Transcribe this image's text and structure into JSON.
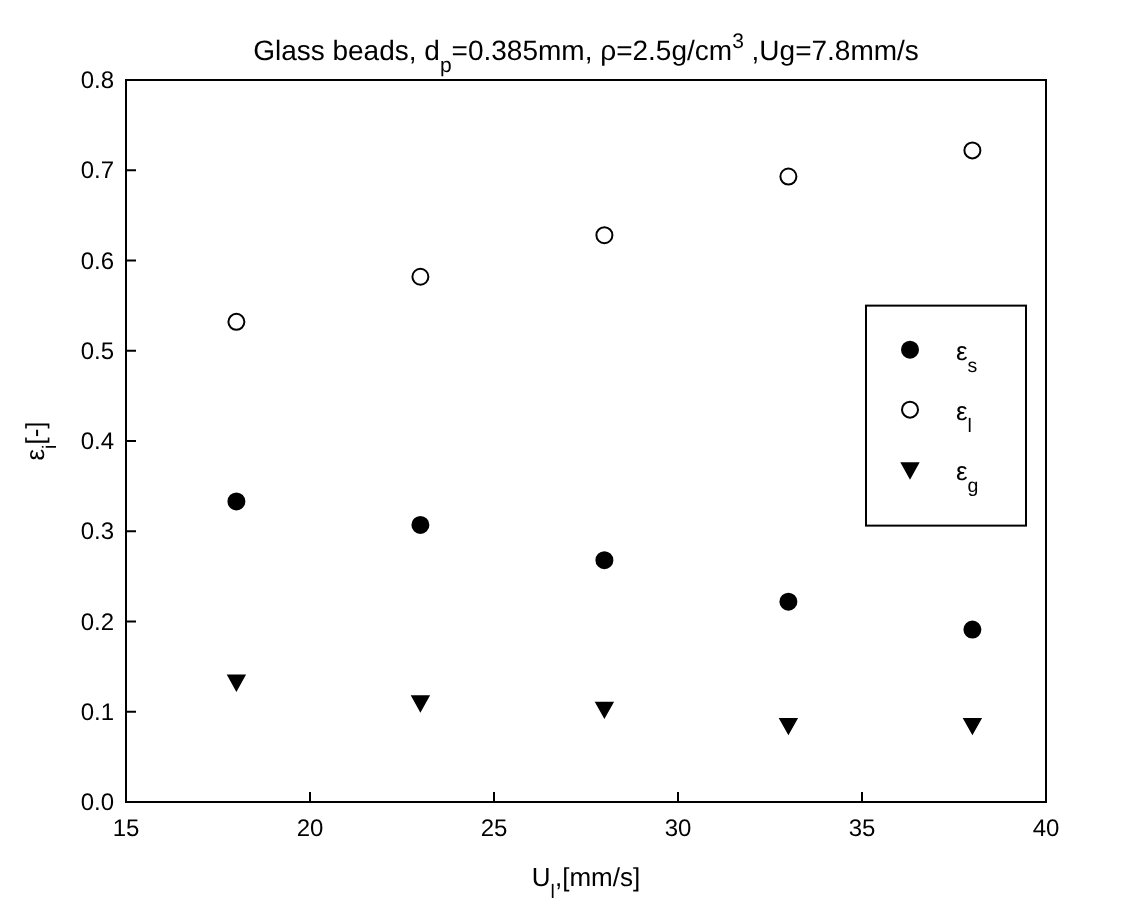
{
  "chart_data": {
    "type": "scatter",
    "title": "Glass beads, d$_{p}$=0.385mm, ρ=2.5g/cm$^{3}$ ,Ug=7.8mm/s",
    "xlabel": "U$_{l}$,[mm/s]",
    "ylabel": "ε$_{i}$[-]",
    "x": [
      18,
      23,
      28,
      33,
      38
    ],
    "series": [
      {
        "name": "ε$_{s}$",
        "color": "#000000",
        "marker": "circle",
        "values": [
          0.333,
          0.307,
          0.268,
          0.222,
          0.191
        ]
      },
      {
        "name": "ε$_{l}$",
        "color": "#ffffff",
        "marker": "circle",
        "values": [
          0.532,
          0.582,
          0.628,
          0.693,
          0.722
        ]
      },
      {
        "name": "ε$_{g}$",
        "color": "#000000",
        "marker": "triangle",
        "values": [
          0.133,
          0.11,
          0.103,
          0.085,
          0.085
        ]
      }
    ],
    "xlim": [
      15,
      40
    ],
    "xticks": [
      15,
      20,
      25,
      30,
      35,
      40
    ],
    "ylim": [
      0,
      0.8
    ],
    "yticks": [
      {
        "value": 0,
        "label": "0.0"
      },
      {
        "value": 0.1,
        "label": "0.1"
      },
      {
        "value": 0.2,
        "label": "0.2"
      },
      {
        "value": 0.3,
        "label": "0.3"
      },
      {
        "value": 0.4,
        "label": "0.4"
      },
      {
        "value": 0.5,
        "label": "0.5"
      },
      {
        "value": 0.6,
        "label": "0.6"
      },
      {
        "value": 0.7,
        "label": "0.7"
      },
      {
        "value": 0.8,
        "label": "0.8"
      }
    ],
    "legend": "right",
    "grid": false
  }
}
